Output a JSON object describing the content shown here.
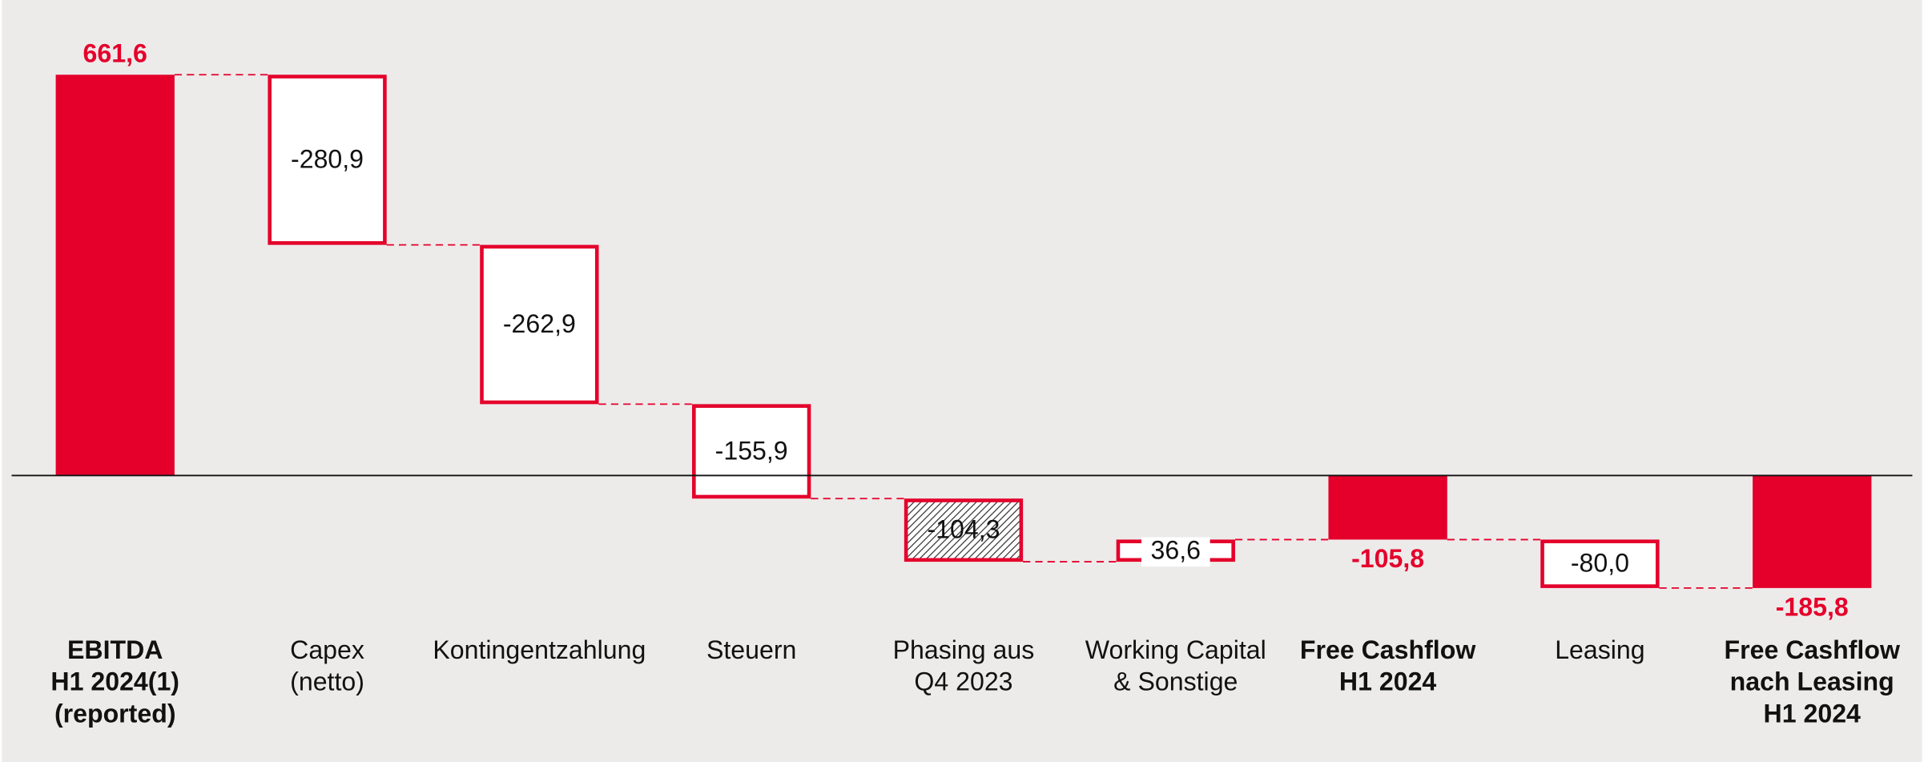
{
  "chart_data": {
    "type": "waterfall",
    "color": "#e4002b",
    "categories": [
      [
        "EBITDA",
        "H1 2024(1)",
        "(reported)"
      ],
      [
        "Capex",
        "(netto)"
      ],
      [
        "Kontingentzahlung"
      ],
      [
        "Steuern"
      ],
      [
        "Phasing aus",
        "Q4 2023"
      ],
      [
        "Working Capital",
        "& Sonstige"
      ],
      [
        "Free Cashflow",
        "H1 2024"
      ],
      [
        "Leasing"
      ],
      [
        "Free Cashflow",
        "nach Leasing",
        "H1 2024"
      ]
    ],
    "values": [
      661.6,
      -280.9,
      -262.9,
      -155.9,
      -104.3,
      36.6,
      -105.8,
      -80.0,
      -185.8
    ],
    "value_labels": [
      "661,6",
      "-280,9",
      "-262,9",
      "-155,9",
      "-104,3",
      "36,6",
      "-105,8",
      "-80,0",
      "-185,8"
    ],
    "totals": [
      true,
      false,
      false,
      false,
      false,
      false,
      true,
      false,
      true
    ],
    "hatched": [
      false,
      false,
      false,
      false,
      true,
      false,
      false,
      false,
      false
    ]
  }
}
